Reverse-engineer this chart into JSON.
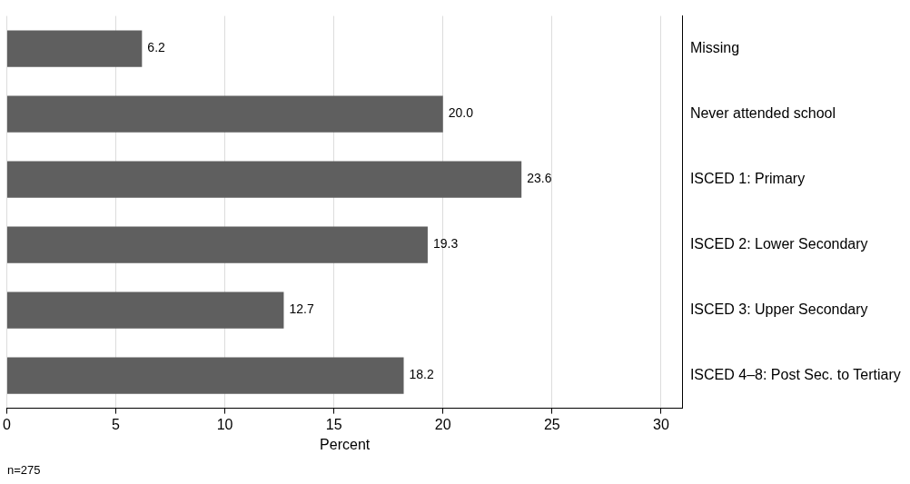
{
  "chart_data": {
    "type": "bar",
    "orientation": "horizontal",
    "categories": [
      "Missing",
      "Never attended school",
      "ISCED 1: Primary",
      "ISCED 2: Lower Secondary",
      "ISCED 3: Upper Secondary",
      "ISCED 4–8: Post Sec. to Tertiary"
    ],
    "values": [
      6.2,
      20.0,
      23.6,
      19.3,
      12.7,
      18.2
    ],
    "value_labels": [
      "6.2",
      "20.0",
      "23.6",
      "19.3",
      "12.7",
      "18.2"
    ],
    "color": "#5f5f5f",
    "xlabel": "Percent",
    "xlim": [
      0,
      31
    ],
    "xticks": [
      0,
      5,
      10,
      15,
      20,
      25,
      30
    ],
    "grid": "x",
    "legend": false,
    "annotations": [
      "n=275"
    ]
  }
}
